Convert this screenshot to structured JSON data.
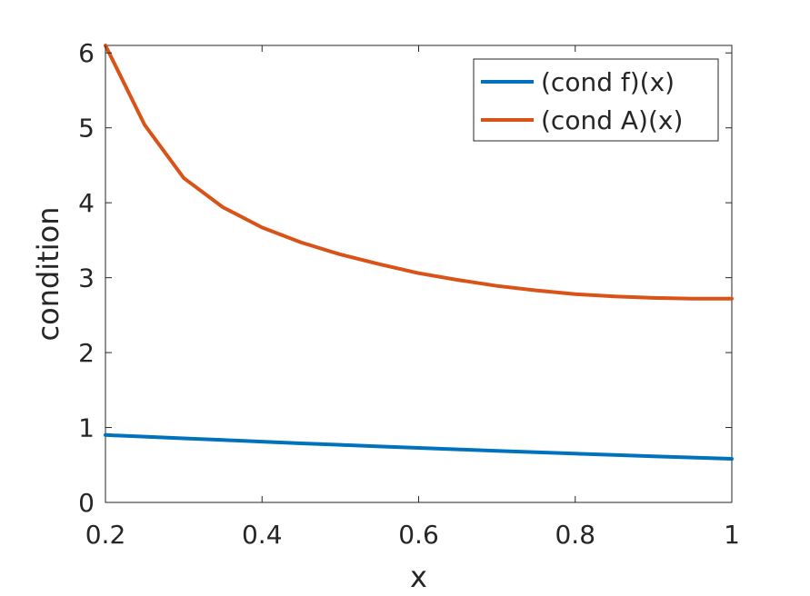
{
  "chart_data": {
    "type": "line",
    "title": "",
    "xlabel": "x",
    "ylabel": "condition",
    "xlim": [
      0.2,
      1
    ],
    "ylim": [
      0,
      6.1
    ],
    "x_ticks": [
      0.2,
      0.4,
      0.6,
      0.8,
      1
    ],
    "x_tick_labels": [
      "0.2",
      "0.4",
      "0.6",
      "0.8",
      "1"
    ],
    "y_ticks": [
      0,
      1,
      2,
      3,
      4,
      5,
      6
    ],
    "y_tick_labels": [
      "0",
      "1",
      "2",
      "3",
      "4",
      "5",
      "6"
    ],
    "grid": false,
    "legend_position": "top-right",
    "x": [
      0.2,
      0.25,
      0.3,
      0.35,
      0.4,
      0.45,
      0.5,
      0.55,
      0.6,
      0.65,
      0.7,
      0.75,
      0.8,
      0.85,
      0.9,
      0.95,
      1.0
    ],
    "series": [
      {
        "name": "(cond f)(x)",
        "color": "#0072BD",
        "values": [
          0.9,
          0.877,
          0.855,
          0.833,
          0.811,
          0.789,
          0.768,
          0.748,
          0.728,
          0.708,
          0.689,
          0.67,
          0.652,
          0.634,
          0.616,
          0.599,
          0.582
        ]
      },
      {
        "name": "(cond A)(x)",
        "color": "#D95319",
        "values": [
          6.1,
          5.04,
          4.33,
          3.94,
          3.67,
          3.47,
          3.31,
          3.18,
          3.06,
          2.97,
          2.89,
          2.83,
          2.78,
          2.75,
          2.73,
          2.72,
          2.72
        ]
      }
    ]
  }
}
